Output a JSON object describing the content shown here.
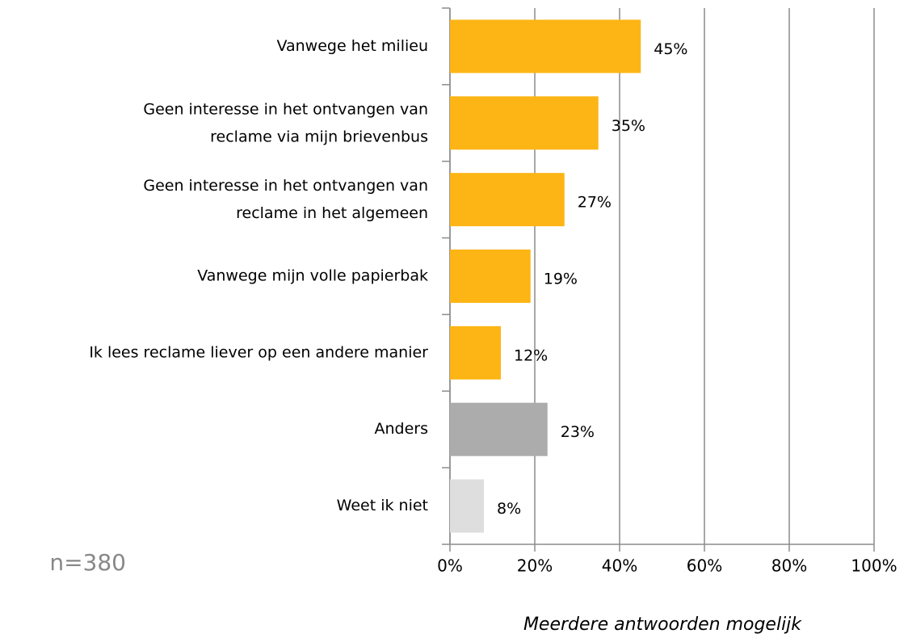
{
  "chart_data": {
    "type": "hbar",
    "categories": [
      "Vanwege het milieu",
      "Geen interesse in het ontvangen van\nreclame via mijn brievenbus",
      "Geen interesse in het ontvangen van\nreclame in het algemeen",
      "Vanwege mijn volle papierbak",
      "Ik lees reclame liever op een andere manier",
      "Anders",
      "Weet ik niet"
    ],
    "values": [
      45,
      35,
      27,
      19,
      12,
      23,
      8
    ],
    "value_labels": [
      "45%",
      "35%",
      "27%",
      "19%",
      "12%",
      "23%",
      "8%"
    ],
    "colors": [
      "#fdb515",
      "#fdb515",
      "#fdb515",
      "#fdb515",
      "#fdb515",
      "#acacac",
      "#dedede"
    ],
    "xlim": [
      0,
      100
    ],
    "xticks": [
      {
        "value": 0,
        "label": "0%"
      },
      {
        "value": 20,
        "label": "20%"
      },
      {
        "value": 40,
        "label": "40%"
      },
      {
        "value": 60,
        "label": "60%"
      },
      {
        "value": 80,
        "label": "80%"
      },
      {
        "value": 100,
        "label": "100%"
      }
    ],
    "xlabel": "Meerdere antwoorden mogelijk",
    "note": "n=380",
    "grid": true
  }
}
